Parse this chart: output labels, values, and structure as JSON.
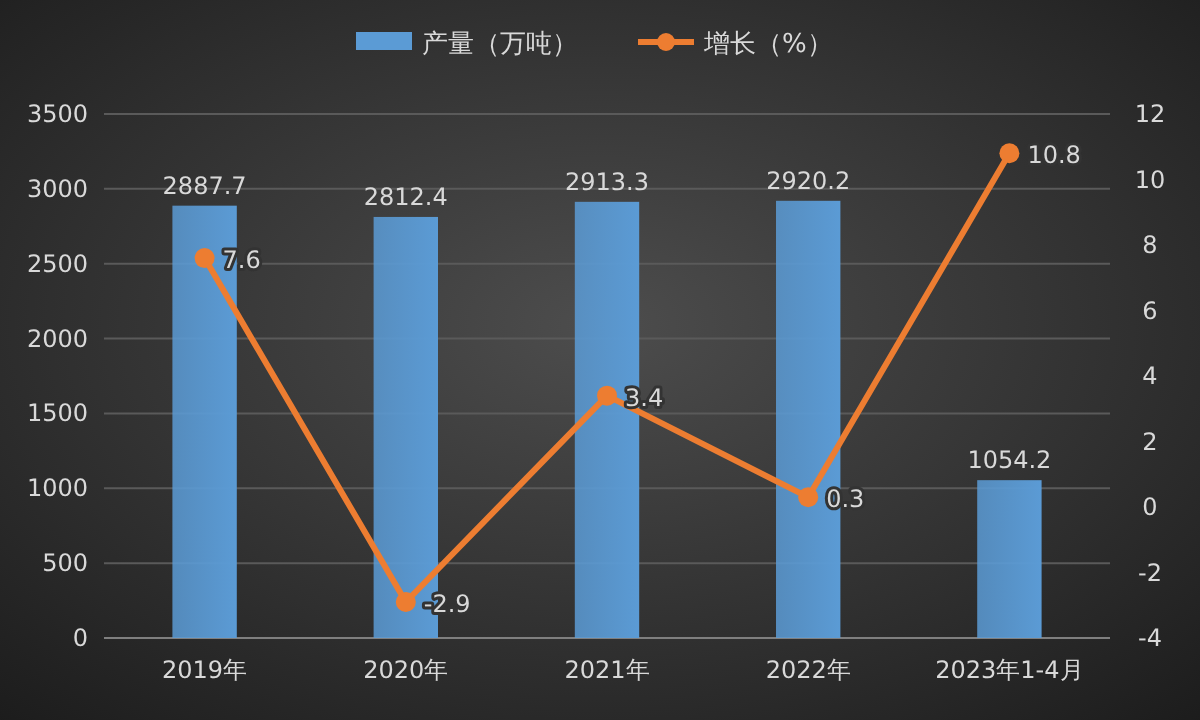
{
  "chart_data": {
    "type": "bar",
    "categories": [
      "2019年",
      "2020年",
      "2021年",
      "2022年",
      "2023年1-4月"
    ],
    "series": [
      {
        "name": "产量（万吨）",
        "color": "#5b9bd5",
        "values": [
          2887.7,
          2812.4,
          2913.3,
          2920.2,
          1054.2
        ]
      },
      {
        "name": "增长（%）",
        "type": "line",
        "axis": "y2",
        "color": "#ed7d31",
        "marker": "circle",
        "values": [
          7.6,
          -2.9,
          3.4,
          0.3,
          10.8
        ]
      }
    ],
    "ylim": [
      0,
      3500
    ],
    "yticks": [
      0,
      500,
      1000,
      1500,
      2000,
      2500,
      3000,
      3500
    ],
    "y2lim": [
      -4,
      12
    ],
    "y2ticks": [
      -4,
      -2,
      0,
      2,
      4,
      6,
      8,
      10,
      12
    ],
    "grid": "y",
    "legend": "top",
    "data_labels": true
  }
}
